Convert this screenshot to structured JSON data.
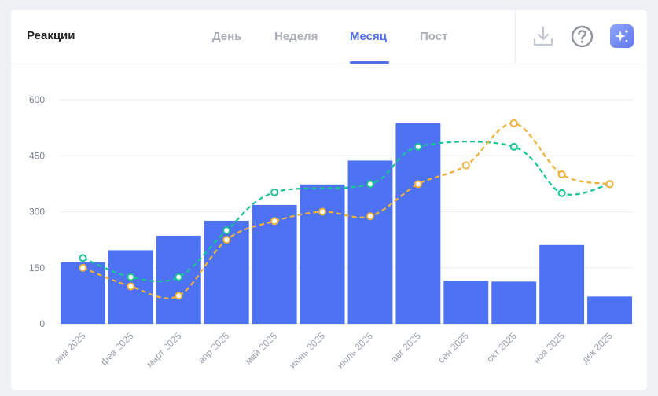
{
  "header": {
    "title": "Реакции",
    "tabs": [
      {
        "label": "День"
      },
      {
        "label": "Неделя"
      },
      {
        "label": "Месяц"
      },
      {
        "label": "Пост"
      }
    ],
    "active_tab": "Месяц",
    "icons": [
      "download-icon",
      "help-icon",
      "sparkle-icon"
    ]
  },
  "colors": {
    "bar": "#4e73f2",
    "line_green": "#19c394",
    "line_orange": "#f0b13a",
    "accent": "#4e6fe8"
  },
  "chart_data": {
    "type": "bar",
    "categories": [
      "янв 2025",
      "фев 2025",
      "март 2025",
      "апр 2025",
      "май 2025",
      "июнь 2025",
      "июль 2025",
      "авг 2025",
      "сен 2025",
      "окт 2025",
      "ноя 2025",
      "дек 2025"
    ],
    "series": [
      {
        "type": "bar",
        "values": [
          165,
          197,
          236,
          276,
          318,
          373,
          437,
          537,
          115,
          113,
          211,
          73
        ]
      },
      {
        "type": "line",
        "style": "dashed",
        "values": [
          176,
          125,
          125,
          250,
          352,
          null,
          374,
          474,
          null,
          474,
          350,
          374
        ]
      },
      {
        "type": "line",
        "style": "dashed",
        "values": [
          150,
          100,
          75,
          225,
          275,
          300,
          288,
          374,
          424,
          537,
          400,
          374
        ]
      }
    ],
    "yticks": [
      0,
      150,
      300,
      450,
      600
    ],
    "ylim": [
      0,
      600
    ],
    "grid": true
  }
}
